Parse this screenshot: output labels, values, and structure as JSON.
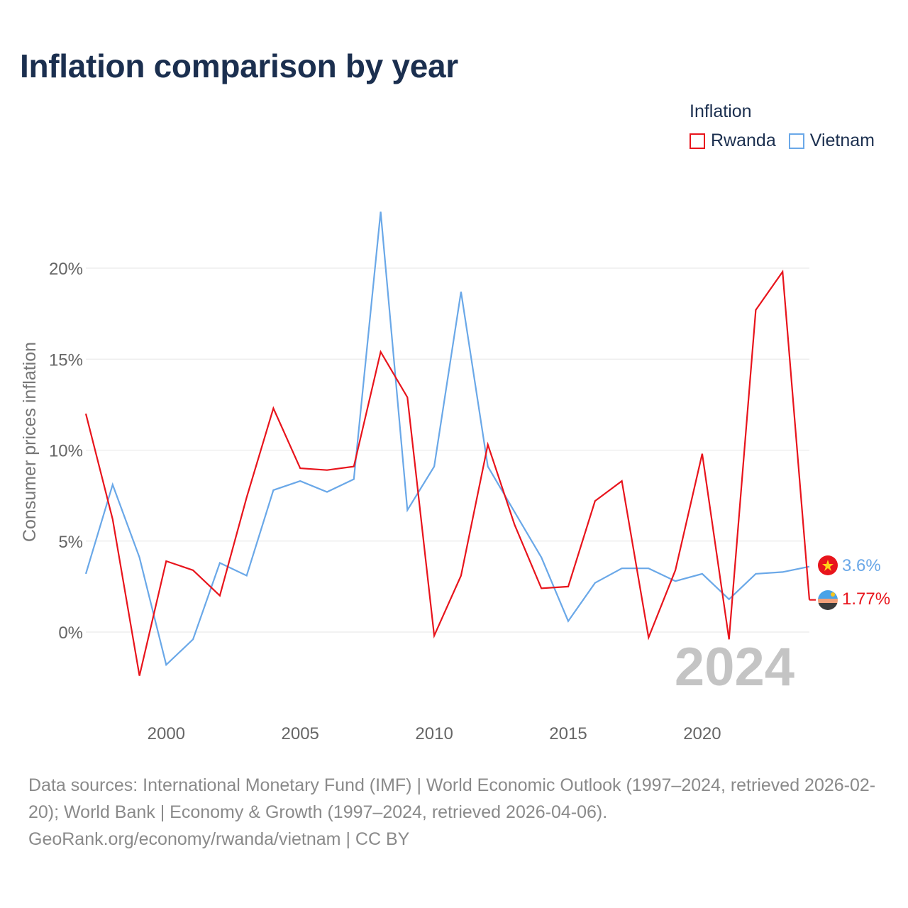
{
  "title": "Inflation comparison by year",
  "legend": {
    "title": "Inflation",
    "items": [
      {
        "name": "Rwanda",
        "color": "#e8141c"
      },
      {
        "name": "Vietnam",
        "color": "#6aa8e8"
      }
    ]
  },
  "chart_data": {
    "type": "line",
    "title": "Inflation comparison by year",
    "xlabel": "",
    "ylabel": "Consumer prices inflation",
    "xlim": [
      1997,
      2024
    ],
    "ylim": [
      -5,
      23
    ],
    "x_ticks": [
      {
        "value": 2000,
        "label": "2000"
      },
      {
        "value": 2005,
        "label": "2005"
      },
      {
        "value": 2010,
        "label": "2010"
      },
      {
        "value": 2015,
        "label": "2015"
      },
      {
        "value": 2020,
        "label": "2020"
      }
    ],
    "y_ticks": [
      {
        "value": 0,
        "label": "0%"
      },
      {
        "value": 5,
        "label": "5%"
      },
      {
        "value": 10,
        "label": "10%"
      },
      {
        "value": 15,
        "label": "15%"
      },
      {
        "value": 20,
        "label": "20%"
      }
    ],
    "grid": true,
    "x": [
      1997,
      1998,
      1999,
      2000,
      2001,
      2002,
      2003,
      2004,
      2005,
      2006,
      2007,
      2008,
      2009,
      2010,
      2011,
      2012,
      2013,
      2014,
      2015,
      2016,
      2017,
      2018,
      2019,
      2020,
      2021,
      2022,
      2023,
      2024
    ],
    "series": [
      {
        "name": "Rwanda",
        "color": "#e8141c",
        "values": [
          12.0,
          6.2,
          -2.4,
          3.9,
          3.4,
          2.0,
          7.4,
          12.3,
          9.0,
          8.9,
          9.1,
          15.4,
          12.9,
          -0.2,
          3.1,
          10.3,
          5.9,
          2.4,
          2.5,
          7.2,
          8.3,
          -0.3,
          3.4,
          9.8,
          -0.4,
          17.7,
          19.8,
          1.77
        ],
        "end_label": "1.77%"
      },
      {
        "name": "Vietnam",
        "color": "#6aa8e8",
        "values": [
          3.2,
          8.1,
          4.1,
          -1.8,
          -0.4,
          3.8,
          3.1,
          7.8,
          8.3,
          7.7,
          8.4,
          23.1,
          6.7,
          9.1,
          18.7,
          9.1,
          6.6,
          4.1,
          0.6,
          2.7,
          3.5,
          3.5,
          2.8,
          3.2,
          1.8,
          3.2,
          3.3,
          3.6
        ],
        "end_label": "3.6%"
      }
    ],
    "annotation": "2024"
  },
  "footer": {
    "line1": "Data sources: International Monetary Fund (IMF) | World Economic Outlook (1997–2024, retrieved 2026-02-20); World Bank | Economy & Growth (1997–2024, retrieved 2026-04-06).",
    "line2": "GeoRank.org/economy/rwanda/vietnam | CC BY"
  }
}
